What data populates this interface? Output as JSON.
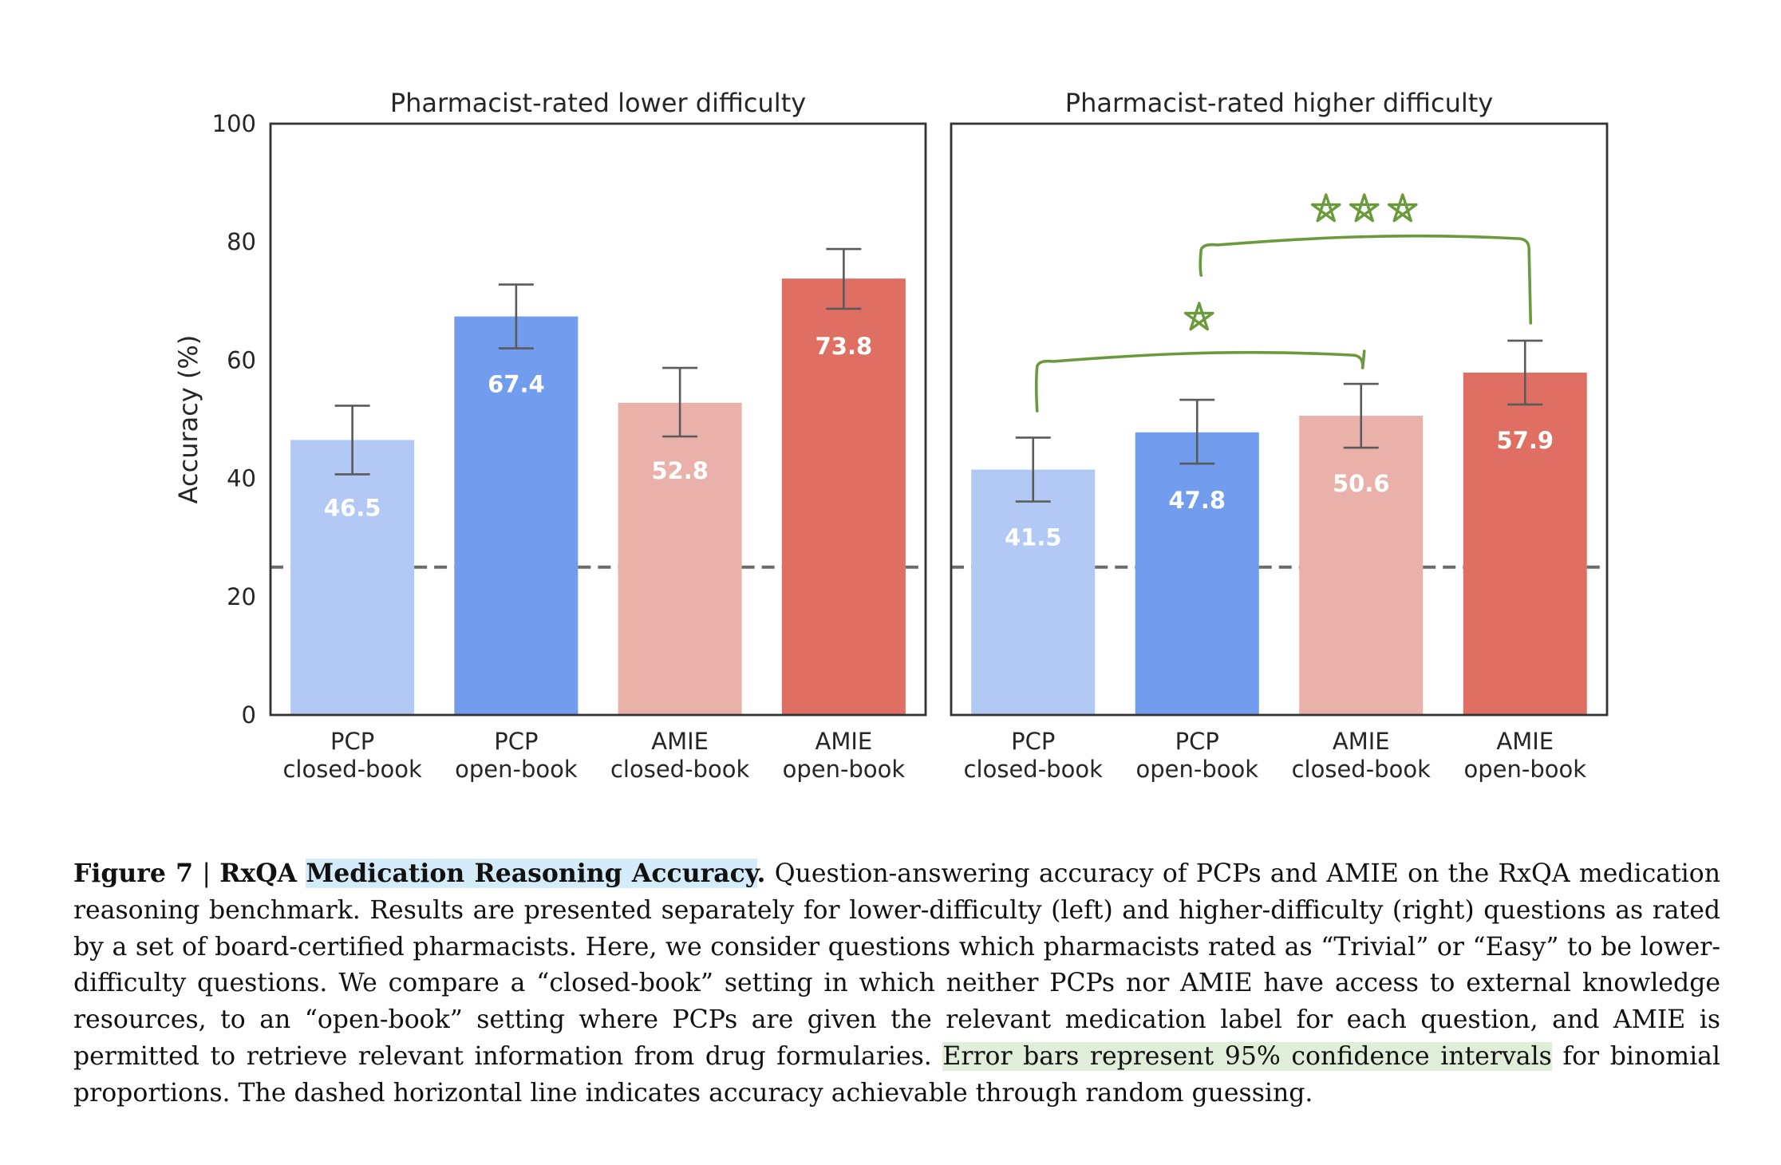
{
  "chart_data": [
    {
      "type": "bar",
      "title": "Pharmacist-rated lower difficulty",
      "xlabel": "",
      "ylabel": "Accuracy (%)",
      "ylim": [
        0,
        100
      ],
      "yticks": [
        0,
        20,
        40,
        60,
        80,
        100
      ],
      "grid": false,
      "categories": [
        "PCP\nclosed-book",
        "PCP\nopen-book",
        "AMIE\nclosed-book",
        "AMIE\nopen-book"
      ],
      "category_lines": [
        [
          "PCP",
          "closed-book"
        ],
        [
          "PCP",
          "open-book"
        ],
        [
          "AMIE",
          "closed-book"
        ],
        [
          "AMIE",
          "open-book"
        ]
      ],
      "values": [
        46.5,
        67.4,
        52.8,
        73.8
      ],
      "value_labels": [
        "46.5",
        "67.4",
        "52.8",
        "73.8"
      ],
      "error_bars": [
        [
          40.7,
          52.3
        ],
        [
          62.0,
          72.8
        ],
        [
          47.1,
          58.7
        ],
        [
          68.7,
          78.8
        ]
      ],
      "colors": [
        "#b3c9f5",
        "#729cee",
        "#eab1ab",
        "#df6e63"
      ],
      "reference_line": {
        "y": 25,
        "style": "dashed",
        "label": "random guessing"
      }
    },
    {
      "type": "bar",
      "title": "Pharmacist-rated higher difficulty",
      "xlabel": "",
      "ylabel": "",
      "ylim": [
        0,
        100
      ],
      "grid": false,
      "categories": [
        "PCP\nclosed-book",
        "PCP\nopen-book",
        "AMIE\nclosed-book",
        "AMIE\nopen-book"
      ],
      "category_lines": [
        [
          "PCP",
          "closed-book"
        ],
        [
          "PCP",
          "open-book"
        ],
        [
          "AMIE",
          "closed-book"
        ],
        [
          "AMIE",
          "open-book"
        ]
      ],
      "values": [
        41.5,
        47.8,
        50.6,
        57.9
      ],
      "value_labels": [
        "41.5",
        "47.8",
        "50.6",
        "57.9"
      ],
      "error_bars": [
        [
          36.1,
          46.9
        ],
        [
          42.5,
          53.3
        ],
        [
          45.2,
          56.0
        ],
        [
          52.5,
          63.3
        ]
      ],
      "colors": [
        "#b3c9f5",
        "#729cee",
        "#eab1ab",
        "#df6e63"
      ],
      "reference_line": {
        "y": 25,
        "style": "dashed",
        "label": "random guessing"
      },
      "annotations": [
        {
          "type": "significance-bracket",
          "from": "PCP closed-book",
          "to": "AMIE closed-book",
          "label": "*",
          "color": "#6a9a3c"
        },
        {
          "type": "significance-bracket",
          "from": "PCP open-book",
          "to": "AMIE open-book",
          "label": "***",
          "color": "#6a9a3c"
        }
      ]
    }
  ],
  "caption": {
    "figure_label": "Figure 7",
    "separator": "|",
    "title_prefix": "RxQA",
    "title_highlighted": "Medication Reasoning Accuracy",
    "title_end": ".",
    "text_1": " Question-answering accuracy of PCPs and AMIE on the RxQA medication reasoning benchmark. Results are presented separately for lower-difficulty (left) and higher-difficulty (right) questions as rated by a set of board-certified pharmacists. Here, we consider questions which pharmacists rated as “Trivial” or “Easy” to be lower-difficulty questions. We compare a “closed-book” setting in which neither PCPs nor AMIE have access to external knowledge resources, to an “open-book” setting where PCPs are given the relevant medication label for each question, and AMIE is permitted to retrieve relevant information from drug formularies. ",
    "text_highlighted": "Error bars represent 95% confidence intervals",
    "text_2": " for binomial proportions. The dashed horizontal line indicates accuracy achievable through random guessing.",
    "highlight_colors": {
      "title": "#d4ecfa",
      "error_bars_sentence": "#dfeed8"
    }
  }
}
